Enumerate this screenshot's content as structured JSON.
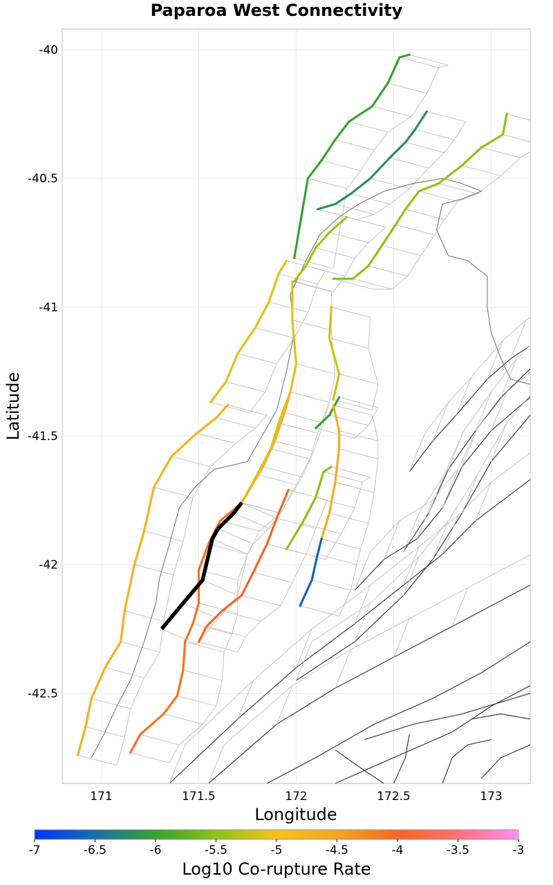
{
  "chart_data": {
    "type": "map",
    "title": "Paparoa West Connectivity",
    "xlabel": "Longitude",
    "ylabel": "Latitude",
    "xlim": [
      170.8,
      173.2
    ],
    "ylim": [
      -42.85,
      -39.92
    ],
    "x_ticks": [
      171,
      171.5,
      172,
      172.5,
      173
    ],
    "x_tick_labels": [
      "171",
      "171.5",
      "172",
      "172.5",
      "173"
    ],
    "y_ticks": [
      -40,
      -40.5,
      -41,
      -41.5,
      -42,
      -42.5
    ],
    "y_tick_labels": [
      "-40",
      "-40.5",
      "-41",
      "-41.5",
      "-42",
      "-42.5"
    ],
    "grid": true,
    "colorbar": {
      "label": "Log10 Co-rupture Rate",
      "min": -7,
      "max": -3,
      "ticks": [
        -7,
        -6.5,
        -6,
        -5.5,
        -5,
        -4.5,
        -4,
        -3.5,
        -3
      ],
      "tick_labels": [
        "-7",
        "-6.5",
        "-6",
        "-5.5",
        "-5",
        "-4.5",
        "-4",
        "-3.5",
        "-3"
      ],
      "color_stops": [
        {
          "value": -7,
          "color": "#0033ff"
        },
        {
          "value": -6.5,
          "color": "#1a6fa8"
        },
        {
          "value": -6,
          "color": "#3aa030"
        },
        {
          "value": -5.5,
          "color": "#8cc21a"
        },
        {
          "value": -5,
          "color": "#f5c21a"
        },
        {
          "value": -4.5,
          "color": "#f5a623"
        },
        {
          "value": -4,
          "color": "#f56520"
        },
        {
          "value": -3.5,
          "color": "#ff6f78"
        },
        {
          "value": -3,
          "color": "#ff90f0"
        }
      ]
    },
    "source_fault": {
      "name": "Paparoa West",
      "color": "#000000",
      "trace": [
        [
          171.31,
          -42.25
        ],
        [
          171.42,
          -42.15
        ],
        [
          171.52,
          -42.06
        ],
        [
          171.57,
          -41.9
        ],
        [
          171.6,
          -41.86
        ],
        [
          171.68,
          -41.8
        ],
        [
          171.72,
          -41.76
        ]
      ]
    },
    "colored_traces": [
      {
        "value": -6.0,
        "points": [
          [
            171.99,
            -40.81
          ],
          [
            172.06,
            -40.5
          ],
          [
            172.13,
            -40.43
          ],
          [
            172.2,
            -40.35
          ],
          [
            172.27,
            -40.28
          ],
          [
            172.39,
            -40.22
          ],
          [
            172.47,
            -40.13
          ],
          [
            172.53,
            -40.03
          ],
          [
            172.58,
            -40.02
          ]
        ]
      },
      {
        "value": -6.2,
        "points": [
          [
            172.11,
            -40.62
          ],
          [
            172.2,
            -40.6
          ],
          [
            172.28,
            -40.56
          ],
          [
            172.38,
            -40.5
          ],
          [
            172.48,
            -40.42
          ],
          [
            172.56,
            -40.36
          ],
          [
            172.61,
            -40.31
          ],
          [
            172.67,
            -40.24
          ]
        ]
      },
      {
        "value": -5.5,
        "points": [
          [
            172.19,
            -40.89
          ],
          [
            172.29,
            -40.89
          ],
          [
            172.37,
            -40.84
          ],
          [
            172.44,
            -40.76
          ],
          [
            172.51,
            -40.68
          ],
          [
            172.56,
            -40.62
          ],
          [
            172.63,
            -40.55
          ],
          [
            172.73,
            -40.52
          ],
          [
            172.85,
            -40.45
          ],
          [
            172.95,
            -40.38
          ],
          [
            173.06,
            -40.33
          ],
          [
            173.08,
            -40.25
          ]
        ]
      },
      {
        "value": -5.4,
        "points": [
          [
            171.99,
            -40.9
          ],
          [
            172.05,
            -40.84
          ],
          [
            172.1,
            -40.77
          ],
          [
            172.17,
            -40.71
          ],
          [
            172.26,
            -40.65
          ]
        ]
      },
      {
        "value": -5.1,
        "points": [
          [
            171.56,
            -41.37
          ],
          [
            171.64,
            -41.29
          ],
          [
            171.7,
            -41.18
          ],
          [
            171.79,
            -41.08
          ],
          [
            171.86,
            -40.98
          ],
          [
            171.91,
            -40.87
          ],
          [
            171.95,
            -40.82
          ]
        ]
      },
      {
        "value": -5.1,
        "points": [
          [
            171.98,
            -40.9
          ],
          [
            171.98,
            -41.05
          ],
          [
            172.0,
            -41.22
          ],
          [
            171.97,
            -41.33
          ],
          [
            171.91,
            -41.45
          ],
          [
            171.87,
            -41.55
          ],
          [
            171.8,
            -41.65
          ],
          [
            171.72,
            -41.76
          ]
        ]
      },
      {
        "value": -4.7,
        "points": [
          [
            171.72,
            -41.76
          ],
          [
            171.83,
            -41.62
          ],
          [
            171.89,
            -41.52
          ],
          [
            171.94,
            -41.41
          ],
          [
            171.97,
            -41.33
          ]
        ]
      },
      {
        "value": -4.7,
        "points": [
          [
            171.65,
            -41.38
          ],
          [
            171.59,
            -41.43
          ],
          [
            171.49,
            -41.49
          ],
          [
            171.36,
            -41.58
          ],
          [
            171.27,
            -41.7
          ],
          [
            171.22,
            -41.87
          ],
          [
            171.17,
            -42.0
          ],
          [
            171.12,
            -42.18
          ],
          [
            171.1,
            -42.3
          ],
          [
            171.02,
            -42.4
          ],
          [
            170.95,
            -42.52
          ],
          [
            170.92,
            -42.63
          ],
          [
            170.88,
            -42.74
          ]
        ]
      },
      {
        "value": -5.2,
        "points": [
          [
            172.18,
            -41.0
          ],
          [
            172.17,
            -41.12
          ],
          [
            172.22,
            -41.26
          ],
          [
            172.19,
            -41.36
          ]
        ]
      },
      {
        "value": -6.0,
        "points": [
          [
            172.1,
            -41.47
          ],
          [
            172.17,
            -41.42
          ],
          [
            172.22,
            -41.35
          ]
        ]
      },
      {
        "value": -4.6,
        "points": [
          [
            172.19,
            -41.38
          ],
          [
            172.22,
            -41.48
          ],
          [
            172.22,
            -41.55
          ],
          [
            172.2,
            -41.68
          ],
          [
            172.17,
            -41.8
          ],
          [
            172.13,
            -41.9
          ]
        ]
      },
      {
        "value": -5.5,
        "points": [
          [
            171.95,
            -41.94
          ],
          [
            172.03,
            -41.84
          ],
          [
            172.1,
            -41.74
          ],
          [
            172.14,
            -41.64
          ],
          [
            172.18,
            -41.62
          ]
        ]
      },
      {
        "value": -6.6,
        "points": [
          [
            172.02,
            -42.16
          ],
          [
            172.08,
            -42.06
          ],
          [
            172.11,
            -41.96
          ],
          [
            172.13,
            -41.9
          ]
        ]
      },
      {
        "value": -4.1,
        "points": [
          [
            171.72,
            -41.76
          ],
          [
            171.61,
            -41.83
          ],
          [
            171.55,
            -41.92
          ],
          [
            171.5,
            -42.02
          ],
          [
            171.5,
            -42.15
          ],
          [
            171.47,
            -42.23
          ],
          [
            171.43,
            -42.3
          ],
          [
            171.42,
            -42.41
          ],
          [
            171.39,
            -42.51
          ],
          [
            171.32,
            -42.58
          ],
          [
            171.2,
            -42.66
          ],
          [
            171.15,
            -42.73
          ]
        ]
      },
      {
        "value": -4.0,
        "points": [
          [
            171.96,
            -41.71
          ],
          [
            171.9,
            -41.82
          ],
          [
            171.85,
            -41.92
          ],
          [
            171.78,
            -42.03
          ],
          [
            171.72,
            -42.12
          ],
          [
            171.62,
            -42.18
          ],
          [
            171.54,
            -42.24
          ],
          [
            171.5,
            -42.3
          ]
        ]
      }
    ],
    "annotations": []
  }
}
